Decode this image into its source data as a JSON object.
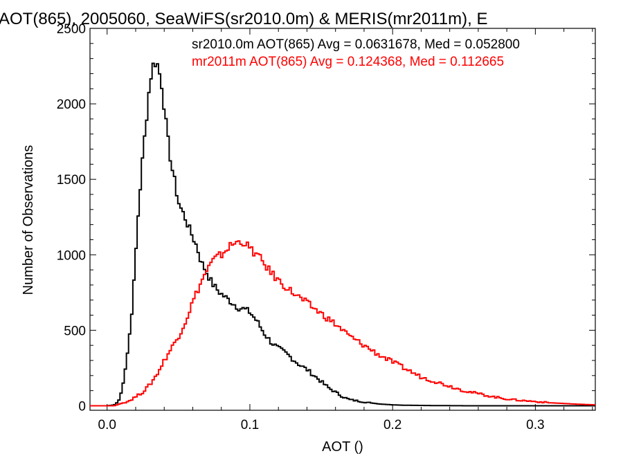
{
  "chart_data": {
    "type": "line",
    "title": "AOT(865), 2005060, SeaWiFS(sr2010.0m) & MERIS(mr2011m), E",
    "xlabel": "AOT ()",
    "ylabel": "Number of Observations",
    "xlim": [
      -0.012,
      0.342
    ],
    "ylim": [
      -30,
      2500
    ],
    "xticks": [
      0.0,
      0.1,
      0.2,
      0.3
    ],
    "xtick_labels": [
      "0.0",
      "0.1",
      "0.2",
      "0.3"
    ],
    "yticks": [
      0,
      500,
      1000,
      1500,
      2000,
      2500
    ],
    "ytick_labels": [
      "0",
      "500",
      "1000",
      "1500",
      "2000",
      "2500"
    ],
    "step": "histogram",
    "annotations": [
      {
        "text": "sr2010.0m AOT(865) Avg = 0.0631678, Med = 0.052800",
        "color": "#000000"
      },
      {
        "text": "mr2011m AOT(865) Avg = 0.124368, Med = 0.112665",
        "color": "#ff0000"
      }
    ],
    "series": [
      {
        "color": "#000000",
        "x": [
          -0.012,
          0.0,
          0.005,
          0.008,
          0.01,
          0.012,
          0.015,
          0.018,
          0.02,
          0.022,
          0.025,
          0.028,
          0.03,
          0.032,
          0.034,
          0.035,
          0.036,
          0.038,
          0.04,
          0.042,
          0.045,
          0.048,
          0.05,
          0.052,
          0.055,
          0.058,
          0.06,
          0.063,
          0.066,
          0.07,
          0.073,
          0.076,
          0.08,
          0.084,
          0.088,
          0.092,
          0.096,
          0.1,
          0.105,
          0.11,
          0.115,
          0.12,
          0.125,
          0.13,
          0.135,
          0.14,
          0.145,
          0.15,
          0.155,
          0.16,
          0.165,
          0.17,
          0.18,
          0.19,
          0.2,
          0.21,
          0.22,
          0.23,
          0.25,
          0.28,
          0.31,
          0.342
        ],
        "y": [
          0,
          0,
          5,
          30,
          90,
          200,
          400,
          700,
          1000,
          1300,
          1650,
          1950,
          2150,
          2250,
          2280,
          2270,
          2230,
          2150,
          1980,
          1800,
          1600,
          1450,
          1350,
          1300,
          1240,
          1160,
          1120,
          1050,
          950,
          880,
          820,
          780,
          740,
          710,
          680,
          650,
          640,
          620,
          560,
          480,
          420,
          380,
          350,
          310,
          270,
          240,
          200,
          160,
          120,
          90,
          60,
          40,
          25,
          12,
          6,
          3,
          2,
          1,
          0,
          0,
          0,
          0
        ]
      },
      {
        "color": "#ff0000",
        "x": [
          -0.012,
          0.005,
          0.01,
          0.015,
          0.02,
          0.025,
          0.03,
          0.035,
          0.04,
          0.045,
          0.05,
          0.055,
          0.06,
          0.065,
          0.07,
          0.075,
          0.08,
          0.085,
          0.09,
          0.095,
          0.1,
          0.105,
          0.11,
          0.115,
          0.12,
          0.125,
          0.13,
          0.14,
          0.15,
          0.16,
          0.17,
          0.18,
          0.19,
          0.2,
          0.21,
          0.22,
          0.23,
          0.24,
          0.25,
          0.26,
          0.27,
          0.28,
          0.29,
          0.3,
          0.31,
          0.32,
          0.33,
          0.342
        ],
        "y": [
          0,
          0,
          15,
          30,
          60,
          90,
          140,
          210,
          300,
          380,
          460,
          560,
          690,
          800,
          900,
          970,
          1000,
          1050,
          1080,
          1090,
          1040,
          1000,
          940,
          880,
          830,
          790,
          750,
          680,
          610,
          540,
          460,
          400,
          340,
          290,
          240,
          190,
          160,
          130,
          100,
          80,
          60,
          45,
          35,
          28,
          20,
          15,
          10,
          6
        ]
      }
    ]
  }
}
